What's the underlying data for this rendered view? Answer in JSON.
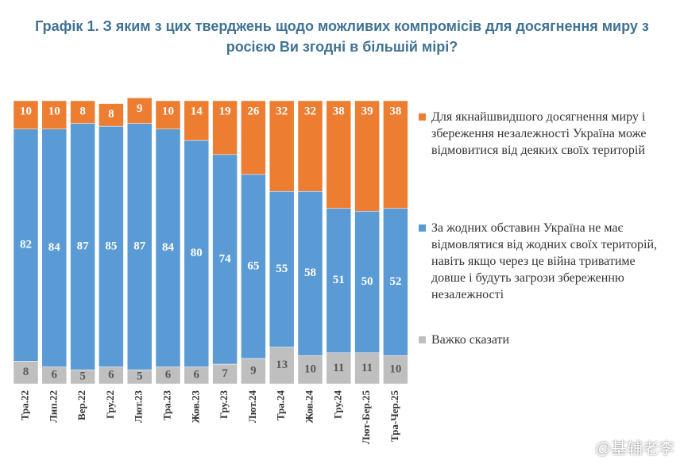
{
  "chart_data": {
    "type": "stacked-bar",
    "title": "Графік 1. З яким з цих тверджень щодо можливих компромісів для досягнення миру з росією Ви згодні в більшій мірі?",
    "categories": [
      "Тра.22",
      "Лип.22",
      "Вер.22",
      "Гру.22",
      "Лют.23",
      "Тра.23",
      "Жов.23",
      "Гру.23",
      "Лют.24",
      "Тра.24",
      "Жов.24",
      "Гру.24",
      "Лют-Бер.25",
      "Тра-Чер.25"
    ],
    "series": [
      {
        "name": "Важко сказати",
        "color": "#bfbfbf",
        "values": [
          8,
          6,
          5,
          6,
          5,
          6,
          6,
          7,
          9,
          13,
          10,
          11,
          11,
          10
        ]
      },
      {
        "name": "За жодних обставин Україна не має відмовлятися від жодних своїх територій, навіть якщо через це війна триватиме довше і будуть загрози збереженню незалежності",
        "color": "#5b9bd5",
        "values": [
          82,
          84,
          87,
          85,
          87,
          84,
          80,
          74,
          65,
          55,
          58,
          51,
          50,
          52
        ]
      },
      {
        "name": "Для якнайшвидшого досягнення миру і збереження незалежності Україна може відмовитися від деяких своїх територій",
        "color": "#ed7d31",
        "values": [
          10,
          10,
          8,
          8,
          9,
          10,
          14,
          19,
          26,
          32,
          32,
          38,
          39,
          38
        ]
      }
    ],
    "ylim": [
      0,
      100
    ],
    "watermark": "@基辅老李"
  }
}
